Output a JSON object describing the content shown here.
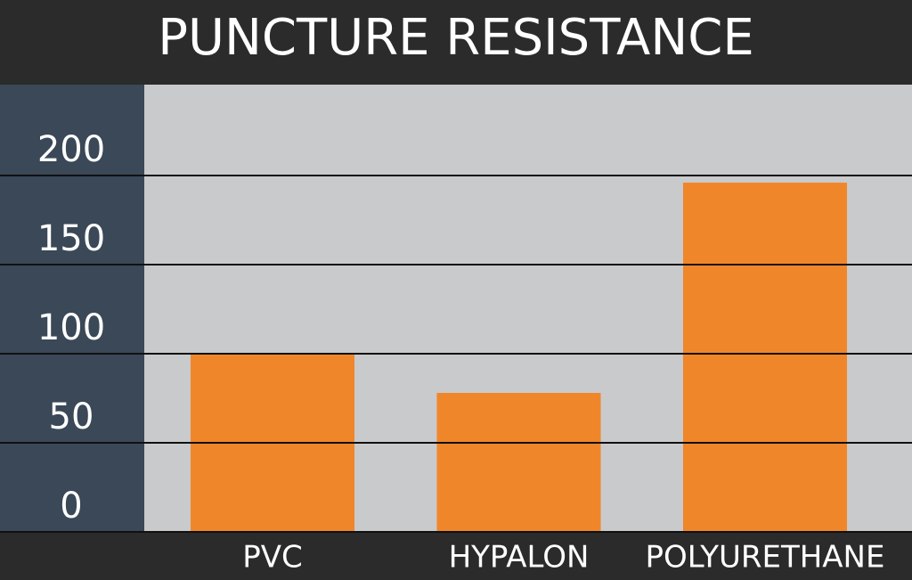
{
  "chart_data": {
    "type": "bar",
    "title": "PUNCTURE RESISTANCE",
    "categories": [
      "PVC",
      "HYPALON",
      "POLYURETHANE"
    ],
    "values": [
      100,
      78,
      196
    ],
    "color": "#f0862a",
    "ylim": [
      0,
      251
    ],
    "yticks": [
      0,
      50,
      100,
      150,
      200
    ],
    "grid": true
  }
}
